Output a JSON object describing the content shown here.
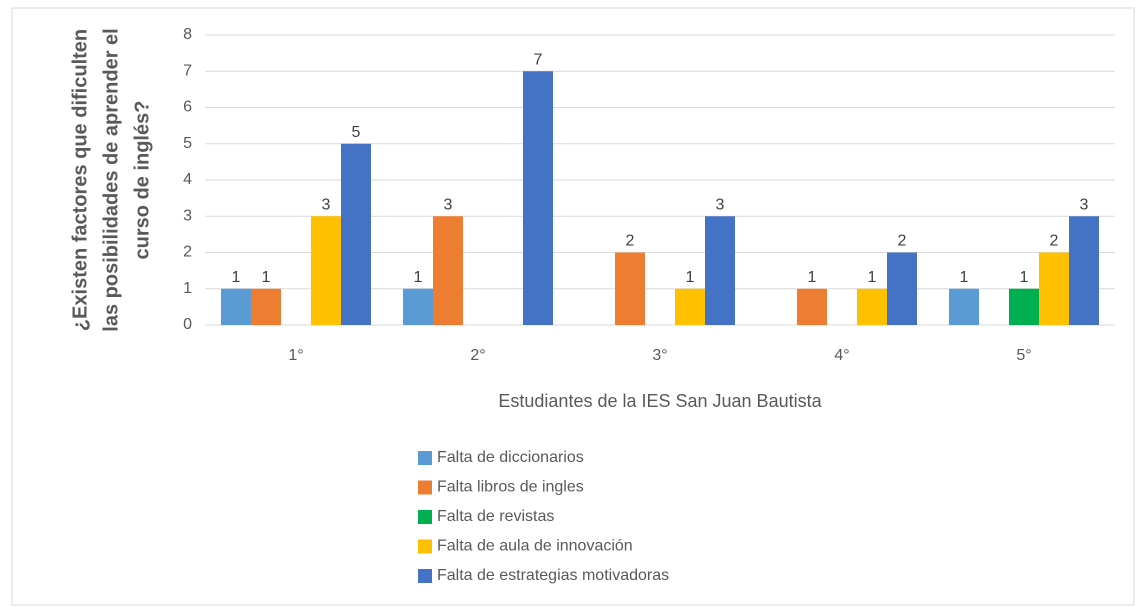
{
  "chart_data": {
    "type": "bar",
    "categories": [
      "1°",
      "2°",
      "3°",
      "4°",
      "5°"
    ],
    "series": [
      {
        "name": "Falta de diccionarios",
        "color": "#5b9bd5",
        "values": [
          1,
          1,
          null,
          null,
          1
        ]
      },
      {
        "name": "Falta libros de ingles",
        "color": "#ed7d31",
        "values": [
          1,
          3,
          2,
          1,
          null
        ]
      },
      {
        "name": "Falta de revistas",
        "color": "#00b050",
        "values": [
          null,
          null,
          null,
          null,
          1
        ]
      },
      {
        "name": "Falta de aula de innovación",
        "color": "#ffc000",
        "values": [
          3,
          null,
          1,
          1,
          2
        ]
      },
      {
        "name": "Falta de estrategias motivadoras",
        "color": "#4472c4",
        "values": [
          5,
          7,
          3,
          2,
          3
        ]
      }
    ],
    "xlabel": "Estudiantes de la IES San Juan Bautista",
    "ylabel": "¿Existen factores que dificulten las posibilidades de aprender el curso de inglés?",
    "ylim": [
      0,
      8
    ],
    "yticks": [
      0,
      1,
      2,
      3,
      4,
      5,
      6,
      7,
      8
    ],
    "grid": true,
    "legend": "bottom"
  }
}
